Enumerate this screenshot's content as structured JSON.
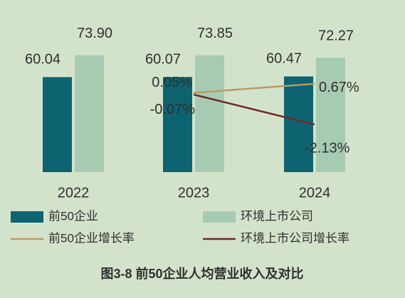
{
  "chart_data": {
    "type": "bar",
    "title": "图3-8 前50企业人均营业收入及对比",
    "categories": [
      "2022",
      "2023",
      "2024"
    ],
    "ylim": [
      0,
      80
    ],
    "y2lim": [
      -5.4,
      3.3
    ],
    "series": [
      {
        "name": "前50企业",
        "type": "bar",
        "color": "#0d6370",
        "values": [
          60.04,
          60.07,
          60.47
        ],
        "value_labels": [
          "60.04",
          "60.07",
          "60.47"
        ]
      },
      {
        "name": "环境上市公司",
        "type": "bar",
        "color": "#a7cbb2",
        "values": [
          73.9,
          73.85,
          72.27
        ],
        "value_labels": [
          "73.90",
          "73.85",
          "72.27"
        ]
      },
      {
        "name": "前50企业增长率",
        "type": "line",
        "axis": "y2",
        "color": "#b79b64",
        "values": [
          null,
          0.05,
          0.67
        ],
        "value_labels": [
          null,
          "0.05%",
          "0.67%"
        ]
      },
      {
        "name": "环境上市公司增长率",
        "type": "line",
        "axis": "y2",
        "color": "#6b2a2a",
        "values": [
          null,
          -0.07,
          -2.13
        ],
        "value_labels": [
          null,
          "-0.07%",
          "-2.13%"
        ]
      }
    ]
  }
}
